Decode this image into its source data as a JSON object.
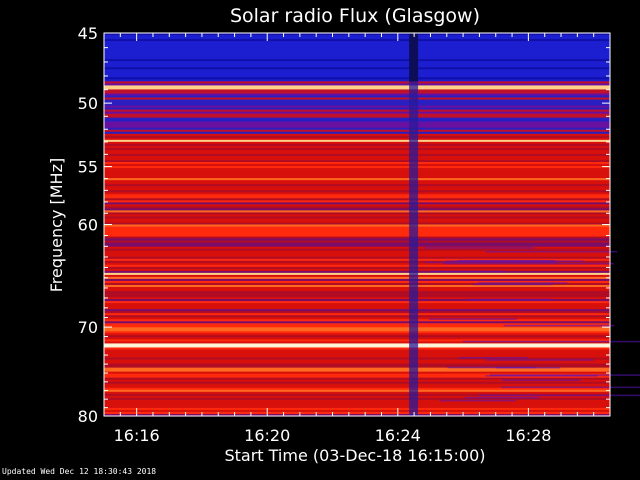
{
  "chart_data": {
    "type": "heatmap",
    "title": "Solar radio Flux (Glasgow)",
    "xlabel": "Start Time (03-Dec-18 16:15:00)",
    "ylabel": "Frequency [MHz]",
    "x_start_time": "16:15:00",
    "x_end_time": "16:30:30",
    "xlim_minutes": [
      0,
      15.5
    ],
    "x_tick_labels": [
      "16:16",
      "16:20",
      "16:24",
      "16:28"
    ],
    "x_tick_minutes": [
      1,
      5,
      9,
      13
    ],
    "y_scale": "log",
    "ylim_mhz": [
      45,
      80
    ],
    "y_tick_labels": [
      "45",
      "50",
      "55",
      "60",
      "70",
      "80"
    ],
    "y_tick_values": [
      45,
      50,
      55,
      60,
      70,
      80
    ],
    "grid": false,
    "colormap": [
      "#0b0d4a",
      "#1c1fd0",
      "#8a0f6a",
      "#b10c22",
      "#ff2a0d",
      "#ff9a30",
      "#fff6d8"
    ],
    "background_color": "#000000",
    "features": {
      "bright_lines_mhz": [
        48.8,
        52.9,
        64.6,
        72.0
      ],
      "low_intensity_band_mhz": [
        45.0,
        48.4
      ],
      "dark_column_minute": 9.5
    }
  },
  "footer": "Updated Wed Dec 12 18:30:43 2018"
}
